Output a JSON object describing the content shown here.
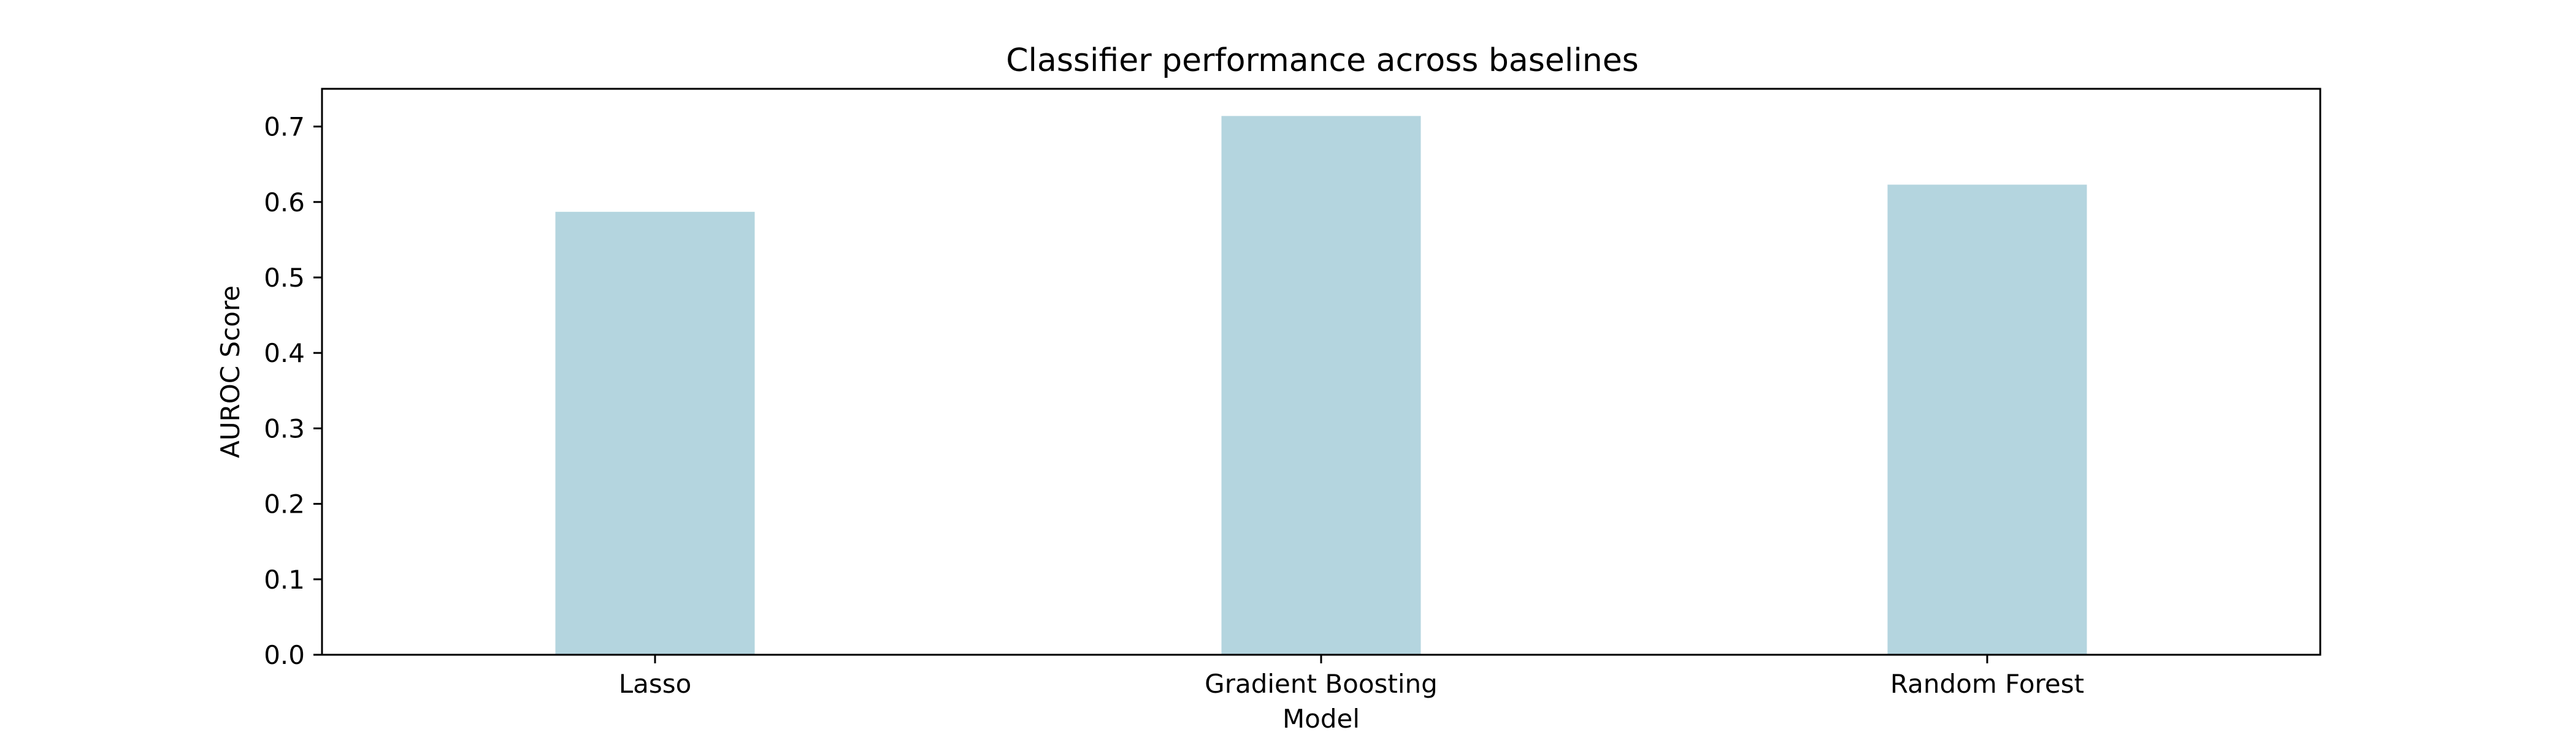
{
  "chart_data": {
    "type": "bar",
    "title": "Classifier performance across baselines",
    "xlabel": "Model",
    "ylabel": "AUROC Score",
    "categories": [
      "Lasso",
      "Gradient Boosting",
      "Random Forest"
    ],
    "values": [
      0.587,
      0.714,
      0.623
    ],
    "ylim": [
      0.0,
      0.75
    ],
    "yticks": [
      "0.0",
      "0.1",
      "0.2",
      "0.3",
      "0.4",
      "0.5",
      "0.6",
      "0.7"
    ],
    "grid": false,
    "legend": "none",
    "bar_color": "#b4d5df"
  }
}
